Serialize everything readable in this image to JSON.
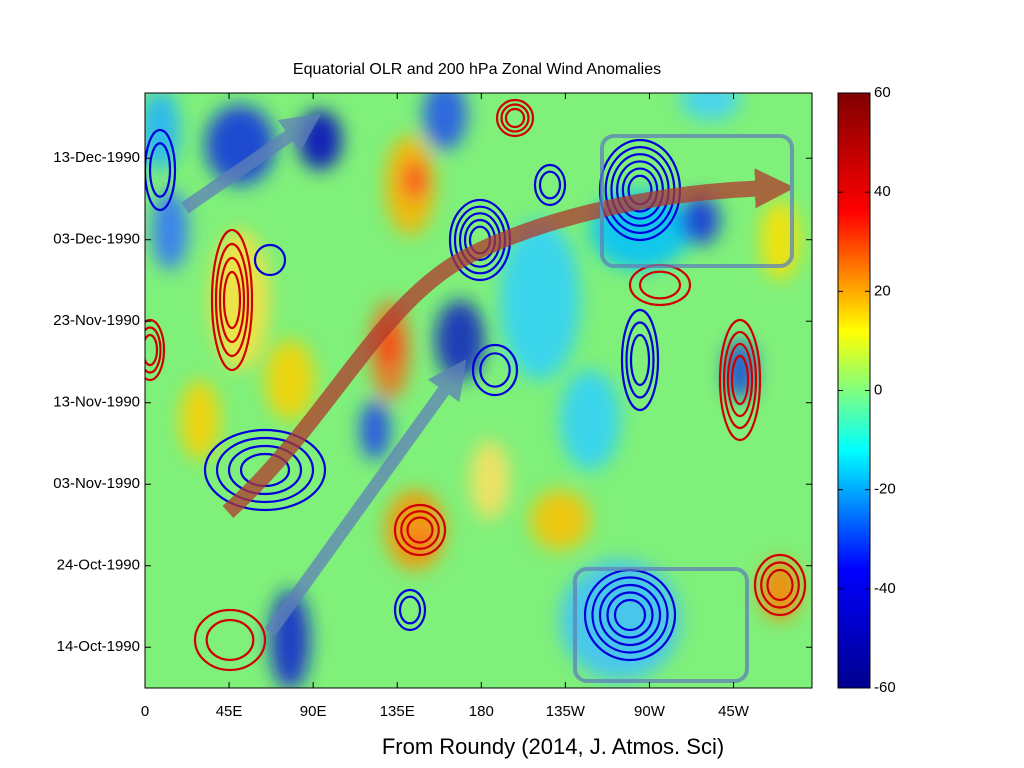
{
  "chart_data": {
    "type": "heatmap",
    "title": "Equatorial OLR and 200 hPa Zonal Wind Anomalies",
    "caption": "From Roundy (2014, J. Atmos. Sci)",
    "xlim": [
      0,
      357
    ],
    "xticks": [
      0,
      {
        "value": 45,
        "label": "45E"
      },
      {
        "value": 90,
        "label": "90E"
      },
      {
        "value": 135,
        "label": "135E"
      },
      180,
      {
        "value": 225,
        "label": "135W"
      },
      {
        "value": 270,
        "label": "90W"
      },
      {
        "value": 315,
        "label": "45W"
      }
    ],
    "ylim": [
      282,
      355
    ],
    "yticks": [
      {
        "value": 287,
        "label": "14-Oct-1990"
      },
      {
        "value": 297,
        "label": "24-Oct-1990"
      },
      {
        "value": 307,
        "label": "03-Nov-1990"
      },
      {
        "value": 317,
        "label": "13-Nov-1990"
      },
      {
        "value": 327,
        "label": "23-Nov-1990"
      },
      {
        "value": 337,
        "label": "03-Dec-1990"
      },
      {
        "value": 347,
        "label": "13-Dec-1990"
      }
    ],
    "clim": [
      -60,
      60
    ],
    "cticks": [
      -60,
      -40,
      -20,
      0,
      20,
      40,
      60
    ],
    "colormap": [
      "#00008f",
      "#0000ff",
      "#00ffff",
      "#ffff00",
      "#ff0000",
      "#800000"
    ]
  }
}
